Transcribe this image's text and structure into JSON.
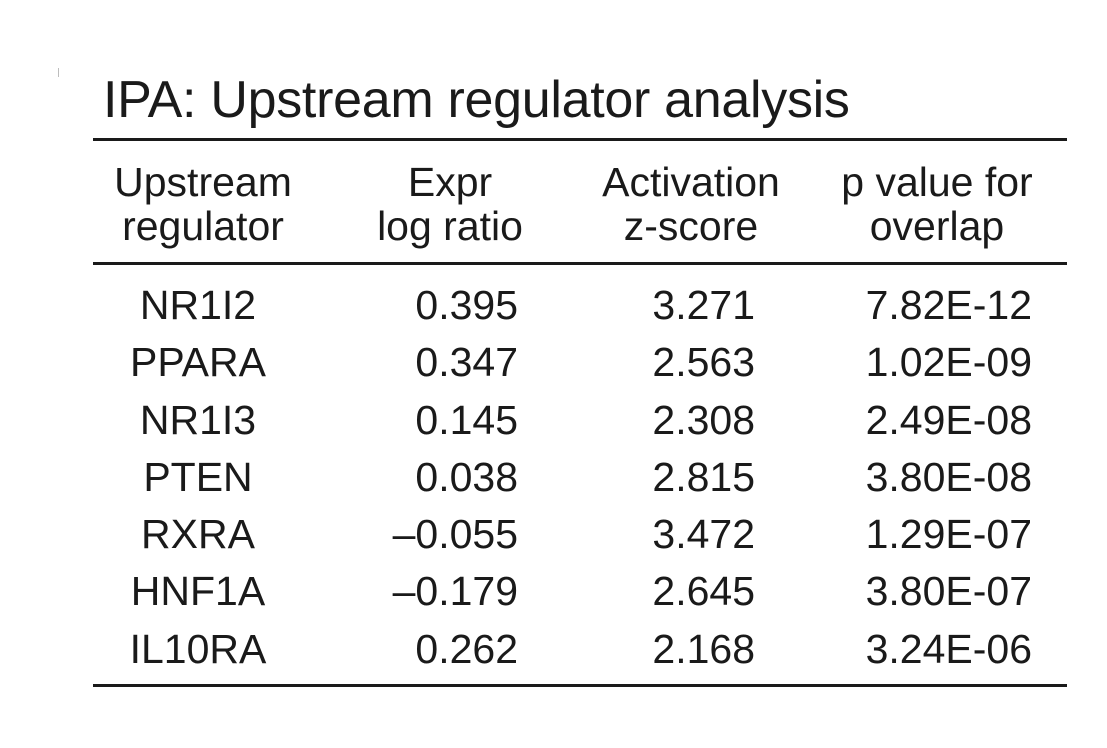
{
  "title": "IPA: Upstream regulator analysis",
  "columns": [
    {
      "line1": "Upstream",
      "line2": "regulator"
    },
    {
      "line1": "Expr",
      "line2": "log ratio"
    },
    {
      "line1": "Activation",
      "line2": "z-score"
    },
    {
      "line1": "p value for",
      "line2": "overlap"
    }
  ],
  "rows": [
    {
      "regulator": "NR1I2",
      "expr": "0.395",
      "zscore": "3.271",
      "pvalue": "7.82E-12"
    },
    {
      "regulator": "PPARA",
      "expr": "0.347",
      "zscore": "2.563",
      "pvalue": "1.02E-09"
    },
    {
      "regulator": "NR1I3",
      "expr": "0.145",
      "zscore": "2.308",
      "pvalue": "2.49E-08"
    },
    {
      "regulator": "PTEN",
      "expr": "0.038",
      "zscore": "2.815",
      "pvalue": "3.80E-08"
    },
    {
      "regulator": "RXRA",
      "expr": "–0.055",
      "zscore": "3.472",
      "pvalue": "1.29E-07"
    },
    {
      "regulator": "HNF1A",
      "expr": "–0.179",
      "zscore": "2.645",
      "pvalue": "3.80E-07"
    },
    {
      "regulator": "IL10RA",
      "expr": "0.262",
      "zscore": "2.168",
      "pvalue": "3.24E-06"
    }
  ]
}
